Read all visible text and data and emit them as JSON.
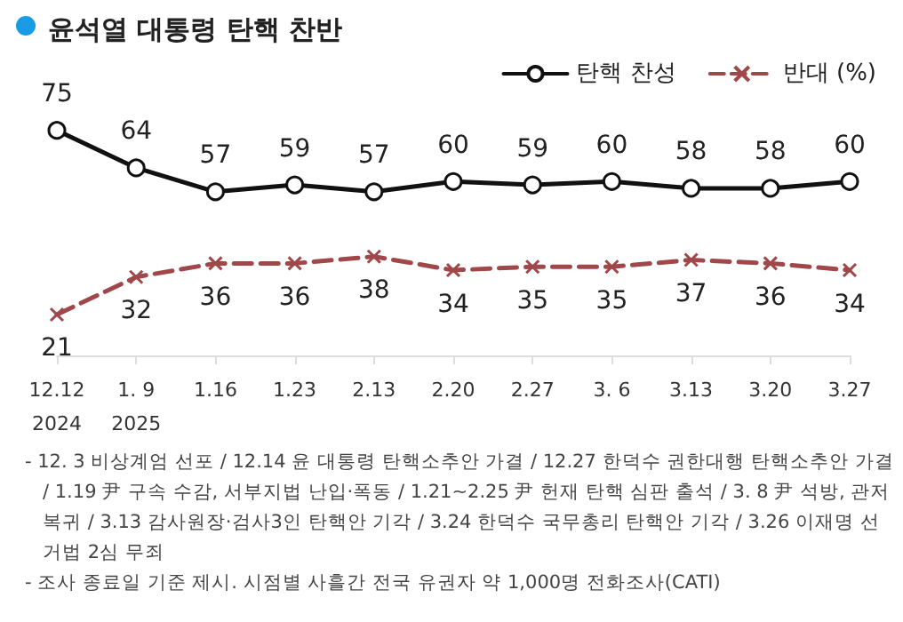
{
  "chart_data": {
    "type": "line",
    "title": "윤석열 대통령 탄핵 찬반",
    "categories": [
      "12.12\n2024",
      "1. 9\n2025",
      "1.16",
      "1.23",
      "2.13",
      "2.20",
      "2.27",
      "3. 6",
      "3.13",
      "3.20",
      "3.27"
    ],
    "series": [
      {
        "name": "탄핵 찬성",
        "color": "#111111",
        "marker": "circle",
        "line_style": "solid",
        "values": [
          75,
          64,
          57,
          59,
          57,
          60,
          59,
          60,
          58,
          58,
          60
        ]
      },
      {
        "name": "반대 (%)",
        "color": "#a0474a",
        "marker": "cross",
        "line_style": "dashed",
        "values": [
          21,
          32,
          36,
          36,
          38,
          34,
          35,
          35,
          37,
          36,
          34
        ]
      }
    ],
    "data_labels": true,
    "legend": "top right",
    "grid": false,
    "annotations": [
      "- 12. 3 비상계엄 선포 / 12.14 윤 대통령 탄핵소추안 가결 / 12.27 한덕수 권한대행 탄핵소추안 가결 / 1.19 尹 구속 수감, 서부지법 난입·폭동 / 1.21~2.25 尹 헌재 탄핵 심판 출석 / 3. 8 尹 석방, 관저 복귀 / 3.13 감사원장·검사3인 탄핵안 기각 / 3.24 한덕수 국무총리 탄핵안 기각 / 3.26 이재명 선거법 2심 무죄",
      "- 조사 종료일 기준 제시. 시점별 사흘간 전국 유권자 약 1,000명 전화조사(CATI)"
    ]
  }
}
